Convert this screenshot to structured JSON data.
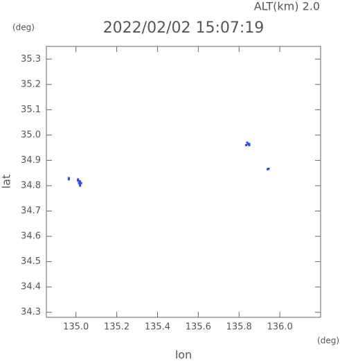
{
  "chart_data": {
    "type": "scatter",
    "title": "2022/02/02 15:07:19",
    "annotation": "ALT(km) 2.0",
    "y_unit": "(deg)",
    "x_unit": "(deg)",
    "xlabel": "lon",
    "ylabel": "lat",
    "color": "#3346e8",
    "x": [
      135.01,
      135.02,
      135.015,
      135.02,
      135.025,
      135.02,
      135.01,
      135.018,
      134.965,
      134.965,
      135.84,
      135.845,
      135.85,
      135.85,
      135.835,
      135.94,
      135.945
    ],
    "y": [
      34.82,
      34.815,
      34.81,
      34.805,
      34.81,
      34.8,
      34.825,
      34.818,
      34.83,
      34.825,
      34.97,
      34.965,
      34.965,
      34.96,
      34.96,
      34.865,
      34.867
    ],
    "xlim": [
      134.855,
      136.2
    ],
    "ylim": [
      34.28,
      35.35
    ],
    "xticks": [
      {
        "value": 135.0,
        "label": "135.0"
      },
      {
        "value": 135.2,
        "label": "135.2"
      },
      {
        "value": 135.4,
        "label": "135.4"
      },
      {
        "value": 135.6,
        "label": "135.6"
      },
      {
        "value": 135.8,
        "label": "135.8"
      },
      {
        "value": 136.0,
        "label": "136.0"
      }
    ],
    "yticks": [
      {
        "value": 34.3,
        "label": "34.3"
      },
      {
        "value": 34.4,
        "label": "34.4"
      },
      {
        "value": 34.5,
        "label": "34.5"
      },
      {
        "value": 34.6,
        "label": "34.6"
      },
      {
        "value": 34.7,
        "label": "34.7"
      },
      {
        "value": 34.8,
        "label": "34.8"
      },
      {
        "value": 34.9,
        "label": "34.9"
      },
      {
        "value": 35.0,
        "label": "35.0"
      },
      {
        "value": 35.1,
        "label": "35.1"
      },
      {
        "value": 35.2,
        "label": "35.2"
      },
      {
        "value": 35.3,
        "label": "35.3"
      }
    ]
  }
}
